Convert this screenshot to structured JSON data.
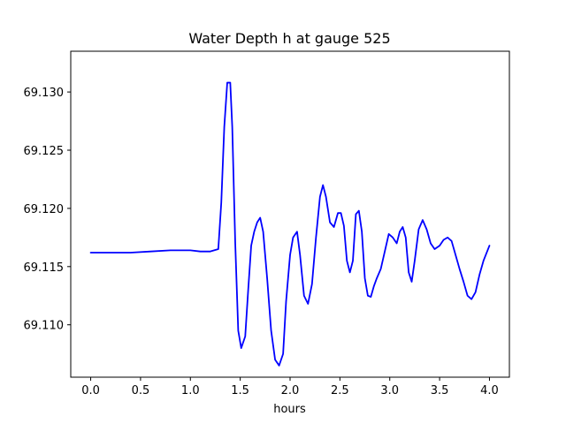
{
  "chart_data": {
    "type": "line",
    "title": "Water Depth h at gauge 525",
    "xlabel": "hours",
    "ylabel": "",
    "xlim": [
      -0.2,
      4.2
    ],
    "ylim": [
      69.1055,
      69.1335
    ],
    "xticks": [
      0.0,
      0.5,
      1.0,
      1.5,
      2.0,
      2.5,
      3.0,
      3.5,
      4.0
    ],
    "xtick_labels": [
      "0.0",
      "0.5",
      "1.0",
      "1.5",
      "2.0",
      "2.5",
      "3.0",
      "3.5",
      "4.0"
    ],
    "yticks": [
      69.11,
      69.115,
      69.12,
      69.125,
      69.13
    ],
    "ytick_labels": [
      "69.110",
      "69.115",
      "69.120",
      "69.125",
      "69.130"
    ],
    "grid": false,
    "line_color": "#0000ff",
    "series": [
      {
        "x": [
          0.0,
          0.2,
          0.4,
          0.6,
          0.8,
          1.0,
          1.1,
          1.2,
          1.28,
          1.31,
          1.34,
          1.37,
          1.4,
          1.42,
          1.45,
          1.48,
          1.51,
          1.55,
          1.58,
          1.61,
          1.64,
          1.67,
          1.7,
          1.73,
          1.77,
          1.81,
          1.85,
          1.89,
          1.93,
          1.96,
          2.0,
          2.03,
          2.07,
          2.1,
          2.14,
          2.18,
          2.22,
          2.26,
          2.3,
          2.33,
          2.36,
          2.4,
          2.44,
          2.48,
          2.51,
          2.54,
          2.57,
          2.6,
          2.63,
          2.66,
          2.69,
          2.72,
          2.75,
          2.78,
          2.81,
          2.84,
          2.87,
          2.91,
          2.95,
          2.99,
          3.03,
          3.07,
          3.1,
          3.13,
          3.16,
          3.19,
          3.22,
          3.25,
          3.29,
          3.33,
          3.37,
          3.41,
          3.45,
          3.5,
          3.54,
          3.58,
          3.62,
          3.66,
          3.7,
          3.74,
          3.78,
          3.82,
          3.86,
          3.9,
          3.94,
          4.0
        ],
        "y": [
          69.1162,
          69.1162,
          69.1162,
          69.1163,
          69.1164,
          69.1164,
          69.1163,
          69.1163,
          69.1165,
          69.1205,
          69.127,
          69.1308,
          69.1308,
          69.127,
          69.117,
          69.1095,
          69.108,
          69.109,
          69.113,
          69.1168,
          69.118,
          69.1188,
          69.1192,
          69.118,
          69.114,
          69.1095,
          69.107,
          69.1065,
          69.1075,
          69.112,
          69.116,
          69.1175,
          69.118,
          69.116,
          69.1125,
          69.1118,
          69.1135,
          69.1175,
          69.121,
          69.122,
          69.121,
          69.1188,
          69.1184,
          69.1196,
          69.1196,
          69.1185,
          69.1155,
          69.1145,
          69.1155,
          69.1195,
          69.1198,
          69.118,
          69.114,
          69.1125,
          69.1124,
          69.1133,
          69.114,
          69.1148,
          69.1163,
          69.1178,
          69.1175,
          69.117,
          69.118,
          69.1184,
          69.1175,
          69.1145,
          69.1137,
          69.1155,
          69.1182,
          69.119,
          69.1182,
          69.117,
          69.1165,
          69.1168,
          69.1173,
          69.1175,
          69.1172,
          69.116,
          69.1148,
          69.1137,
          69.1125,
          69.1122,
          69.1128,
          69.1143,
          69.1155,
          69.1168
        ]
      }
    ]
  }
}
